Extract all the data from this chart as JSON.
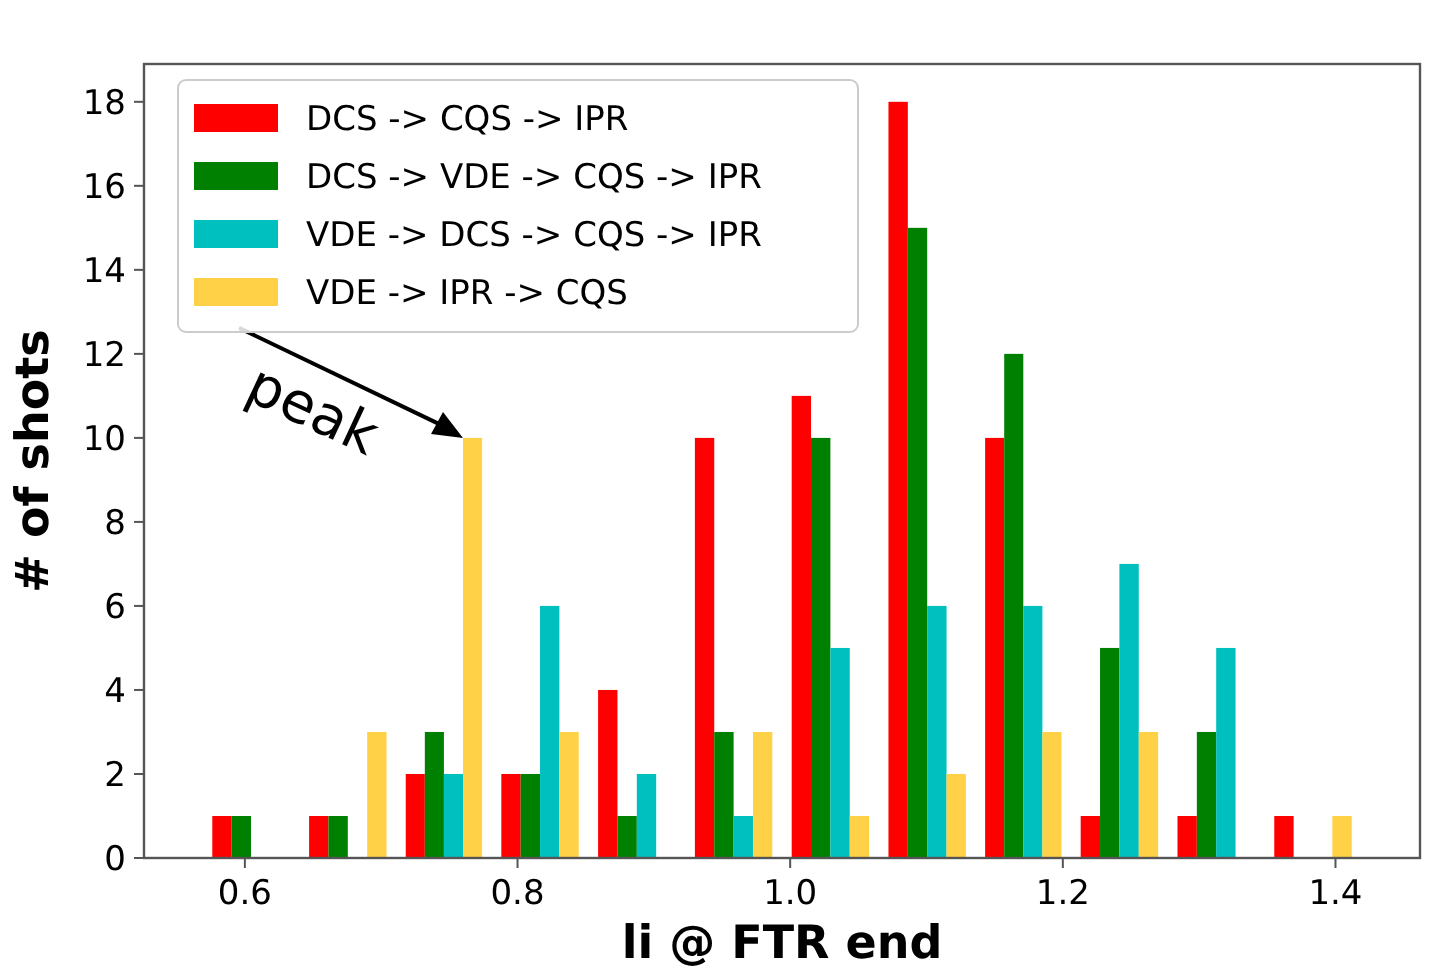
{
  "chart_data": {
    "type": "histogram",
    "xlabel": "li @ FTR end",
    "ylabel": "# of shots",
    "bins": [
      0.569,
      0.64,
      0.711,
      0.781,
      0.852,
      0.923,
      0.994,
      1.065,
      1.136,
      1.206,
      1.277,
      1.348,
      1.419
    ],
    "series": [
      {
        "name": "DCS -> CQS -> IPR",
        "color": "#ff0000",
        "values": [
          1,
          1,
          2,
          2,
          4,
          10,
          11,
          18,
          10,
          1,
          1,
          1
        ]
      },
      {
        "name": "DCS -> VDE -> CQS -> IPR",
        "color": "#008000",
        "values": [
          1,
          1,
          3,
          2,
          1,
          3,
          10,
          15,
          12,
          5,
          3,
          0
        ]
      },
      {
        "name": "VDE -> DCS -> CQS -> IPR",
        "color": "#00bfbf",
        "values": [
          0,
          0,
          2,
          6,
          2,
          1,
          5,
          6,
          6,
          7,
          5,
          0
        ]
      },
      {
        "name": "VDE -> IPR -> CQS",
        "color": "#ffd147",
        "values": [
          0,
          3,
          10,
          3,
          0,
          3,
          1,
          2,
          3,
          3,
          0,
          1
        ]
      }
    ],
    "xlim": [
      0.526,
      1.462
    ],
    "xticks": [
      {
        "value": 0.6,
        "label": "0.6"
      },
      {
        "value": 0.8,
        "label": "0.8"
      },
      {
        "value": 1,
        "label": "1.0"
      },
      {
        "value": 1.2,
        "label": "1.2"
      },
      {
        "value": 1.4,
        "label": "1.4"
      }
    ],
    "ylim": [
      0,
      18.9
    ],
    "yticks": [
      0,
      2,
      4,
      6,
      8,
      10,
      12,
      14,
      16,
      18
    ],
    "legend": "top left",
    "grid": false,
    "annotations": [
      {
        "text": "peak",
        "x": 0.76,
        "y": 10
      }
    ]
  }
}
